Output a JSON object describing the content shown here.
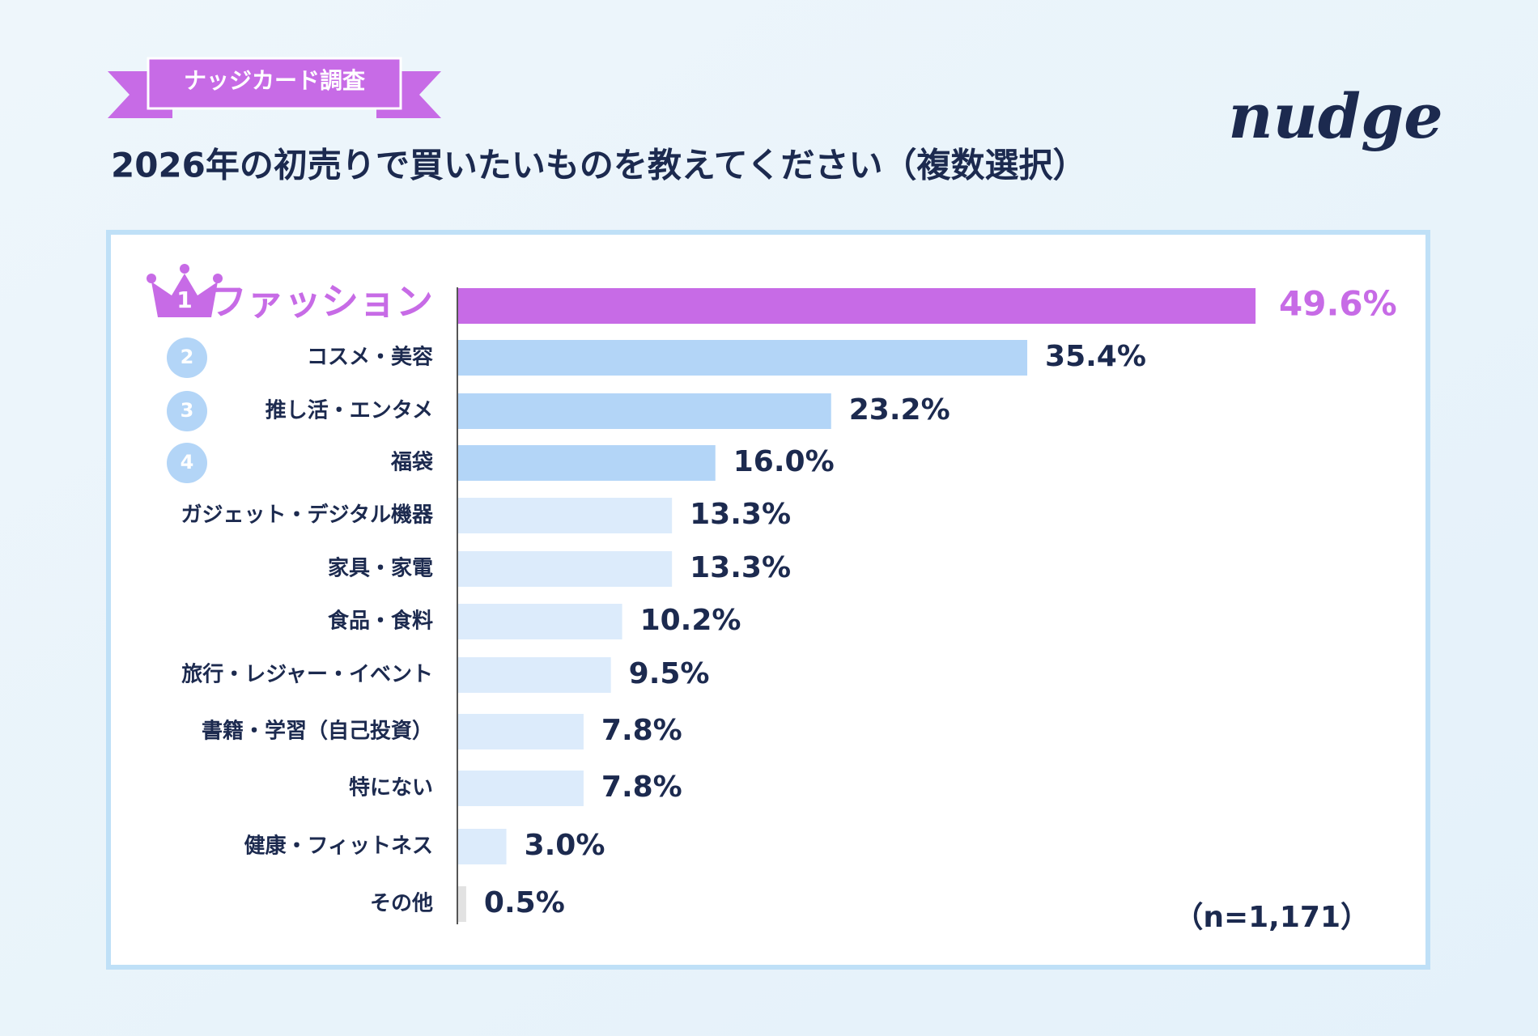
{
  "banner": "ナッジカード調査",
  "logo": "nudge",
  "chart_data": {
    "type": "bar",
    "orientation": "horizontal",
    "title": "2026年の初売りで買いたいものを教えてください（複数選択）",
    "categories": [
      "ファッション",
      "コスメ・美容",
      "推し活・エンタメ",
      "福袋",
      "ガジェット・デジタル機器",
      "家具・家電",
      "食品・食料",
      "旅行・レジャー・イベント",
      "書籍・学習（自己投資）",
      "特にない",
      "健康・フィットネス",
      "その他"
    ],
    "values": [
      49.6,
      35.4,
      23.2,
      16.0,
      13.3,
      13.3,
      10.2,
      9.5,
      7.8,
      7.8,
      3.0,
      0.5
    ],
    "value_labels": [
      "49.6%",
      "35.4%",
      "23.2%",
      "16.0%",
      "13.3%",
      "13.3%",
      "10.2%",
      "9.5%",
      "7.8%",
      "7.8%",
      "3.0%",
      "0.5%"
    ],
    "colors": [
      "#c76be6",
      "#b3d5f7",
      "#b3d5f7",
      "#b3d5f7",
      "#dcebfb",
      "#dcebfb",
      "#dcebfb",
      "#dcebfb",
      "#dcebfb",
      "#dcebfb",
      "#dcebfb",
      "#e2e2e2"
    ],
    "rank_badges": [
      "1",
      "2",
      "3",
      "4"
    ],
    "note": "（n=1,171）"
  }
}
